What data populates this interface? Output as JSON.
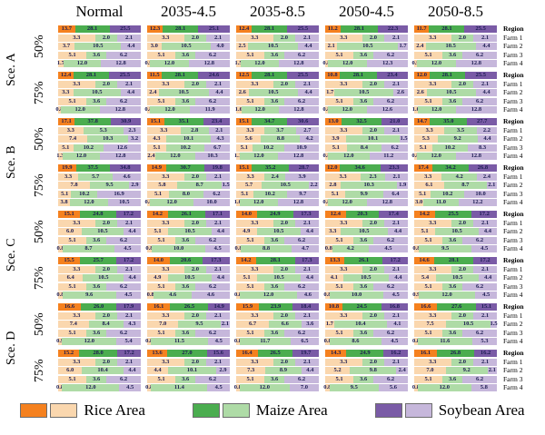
{
  "legend": [
    {
      "label": "Rice Area",
      "dark": "#F5811F",
      "light": "#FAD7AE"
    },
    {
      "label": "Maize Area",
      "dark": "#4BAD4F",
      "light": "#AEDBA6"
    },
    {
      "label": "Soybean Area",
      "dark": "#7A5BA6",
      "light": "#C6B7DB"
    }
  ],
  "chart_data": {
    "type": "bar",
    "variant": "horizontal-stacked-normalized-small-multiples",
    "columns": [
      "Normal",
      "2035-4.5",
      "2035-8.5",
      "2050-4.5",
      "2050-8.5"
    ],
    "series_names": [
      "Rice Area",
      "Maize Area",
      "Soybean Area"
    ],
    "row_labels": [
      "Region",
      "Farm 1",
      "Farm 2",
      "Farm 3",
      "Farm 4"
    ],
    "groups": [
      {
        "scenario": "Sce. A",
        "percent": "50%",
        "values": [
          [
            [
              13.7,
              28.1,
              25.5
            ],
            [
              3.3,
              2.0,
              2.1
            ],
            [
              3.7,
              10.5,
              4.4
            ],
            [
              5.1,
              3.6,
              6.2
            ],
            [
              1.7,
              12.0,
              12.8
            ]
          ],
          [
            [
              12.3,
              28.1,
              25.1
            ],
            [
              3.3,
              2.0,
              2.1
            ],
            [
              3.0,
              10.5,
              4.0
            ],
            [
              5.1,
              3.6,
              6.2
            ],
            [
              0.9,
              12.0,
              12.8
            ]
          ],
          [
            [
              12.4,
              28.1,
              25.5
            ],
            [
              3.3,
              2.0,
              2.1
            ],
            [
              2.5,
              10.5,
              4.4
            ],
            [
              5.1,
              3.6,
              6.2
            ],
            [
              1.5,
              12.0,
              12.8
            ]
          ],
          [
            [
              11.2,
              28.1,
              22.3
            ],
            [
              3.3,
              2.0,
              2.1
            ],
            [
              2.1,
              10.5,
              1.7
            ],
            [
              5.1,
              3.6,
              6.2
            ],
            [
              0.8,
              12.0,
              12.3
            ]
          ],
          [
            [
              11.7,
              28.1,
              25.5
            ],
            [
              3.3,
              2.0,
              2.1
            ],
            [
              2.4,
              10.5,
              4.4
            ],
            [
              5.1,
              3.6,
              6.2
            ],
            [
              0.9,
              12.0,
              12.8
            ]
          ]
        ]
      },
      {
        "scenario": "Sce. A",
        "percent": "75%",
        "values": [
          [
            [
              12.4,
              28.1,
              25.5
            ],
            [
              3.3,
              2.0,
              2.1
            ],
            [
              3.3,
              10.5,
              4.4
            ],
            [
              5.1,
              3.6,
              6.2
            ],
            [
              0.8,
              12.0,
              12.8
            ]
          ],
          [
            [
              11.5,
              28.1,
              24.6
            ],
            [
              3.3,
              2.0,
              2.1
            ],
            [
              2.4,
              10.5,
              4.4
            ],
            [
              5.1,
              3.6,
              6.2
            ],
            [
              0.8,
              12.0,
              11.9
            ]
          ],
          [
            [
              12.5,
              28.1,
              25.5
            ],
            [
              3.3,
              2.0,
              2.1
            ],
            [
              2.6,
              10.5,
              4.4
            ],
            [
              5.1,
              3.6,
              6.2
            ],
            [
              1.6,
              12.0,
              12.8
            ]
          ],
          [
            [
              10.8,
              28.1,
              23.4
            ],
            [
              3.3,
              2.0,
              2.1
            ],
            [
              1.7,
              10.5,
              2.6
            ],
            [
              5.1,
              3.6,
              6.2
            ],
            [
              0.8,
              12.0,
              12.6
            ]
          ],
          [
            [
              12.0,
              28.1,
              25.5
            ],
            [
              3.3,
              2.0,
              2.1
            ],
            [
              2.6,
              10.5,
              4.4
            ],
            [
              5.1,
              3.6,
              6.2
            ],
            [
              1.0,
              12.0,
              12.8
            ]
          ]
        ]
      },
      {
        "scenario": "Sce. B",
        "percent": "50%",
        "values": [
          [
            [
              17.1,
              37.8,
              30.9
            ],
            [
              3.3,
              5.3,
              2.3
            ],
            [
              7.4,
              10.3,
              3.2
            ],
            [
              5.1,
              10.2,
              12.6
            ],
            [
              1.3,
              12.0,
              12.8
            ]
          ],
          [
            [
              15.1,
              35.1,
              23.4
            ],
            [
              3.3,
              2.8,
              2.1
            ],
            [
              4.3,
              10.1,
              4.3
            ],
            [
              5.1,
              10.2,
              6.7
            ],
            [
              2.4,
              12.0,
              10.3
            ]
          ],
          [
            [
              15.1,
              34.7,
              30.6
            ],
            [
              3.3,
              3.7,
              2.7
            ],
            [
              5.6,
              8.8,
              4.2
            ],
            [
              5.1,
              10.2,
              10.9
            ],
            [
              1.1,
              12.0,
              12.8
            ]
          ],
          [
            [
              13.0,
              32.5,
              21.0
            ],
            [
              3.3,
              2.0,
              2.1
            ],
            [
              3.9,
              10.1,
              1.5
            ],
            [
              5.1,
              8.4,
              6.2
            ],
            [
              0.8,
              12.0,
              11.2
            ]
          ],
          [
            [
              14.7,
              35.0,
              27.7
            ],
            [
              3.3,
              3.5,
              2.2
            ],
            [
              5.3,
              9.2,
              4.4
            ],
            [
              5.1,
              10.2,
              8.3
            ],
            [
              0.8,
              12.0,
              12.8
            ]
          ]
        ]
      },
      {
        "scenario": "Sce. B",
        "percent": "75%",
        "values": [
          [
            [
              19.9,
              37.5,
              34.8
            ],
            [
              3.3,
              5.7,
              4.6
            ],
            [
              7.8,
              9.5,
              2.9
            ],
            [
              5.1,
              10.2,
              16.9
            ],
            [
              3.8,
              12.0,
              10.5
            ]
          ],
          [
            [
              14.9,
              30.7,
              19.8
            ],
            [
              3.3,
              2.0,
              2.1
            ],
            [
              5.8,
              8.7,
              1.5
            ],
            [
              5.1,
              8.0,
              6.2
            ],
            [
              0.8,
              12.0,
              10.0
            ]
          ],
          [
            [
              15.1,
              35.2,
              28.7
            ],
            [
              3.3,
              2.4,
              3.9
            ],
            [
              5.7,
              10.5,
              2.2
            ],
            [
              5.1,
              10.2,
              9.7
            ],
            [
              1.0,
              12.0,
              12.8
            ]
          ],
          [
            [
              12.0,
              34.6,
              23.3
            ],
            [
              3.3,
              2.3,
              2.1
            ],
            [
              2.8,
              10.3,
              1.9
            ],
            [
              5.1,
              9.9,
              6.4
            ],
            [
              0.8,
              12.0,
              12.8
            ]
          ],
          [
            [
              17.4,
              34.2,
              26.8
            ],
            [
              3.3,
              4.2,
              2.4
            ],
            [
              6.1,
              8.7,
              2.1
            ],
            [
              5.1,
              10.2,
              10.0
            ],
            [
              3.0,
              11.0,
              12.2
            ]
          ]
        ]
      },
      {
        "scenario": "Sce. C",
        "percent": "50%",
        "values": [
          [
            [
              15.1,
              24.8,
              17.2
            ],
            [
              3.3,
              2.0,
              2.1
            ],
            [
              6.0,
              10.5,
              4.4
            ],
            [
              5.1,
              3.6,
              6.2
            ],
            [
              0.8,
              8.7,
              4.5
            ]
          ],
          [
            [
              14.2,
              26.1,
              17.1
            ],
            [
              3.3,
              2.0,
              2.1
            ],
            [
              5.1,
              10.5,
              4.4
            ],
            [
              5.1,
              3.6,
              6.2
            ],
            [
              0.8,
              10.0,
              4.5
            ]
          ],
          [
            [
              14.0,
              24.9,
              17.3
            ],
            [
              3.3,
              2.0,
              2.1
            ],
            [
              4.9,
              10.5,
              4.4
            ],
            [
              5.1,
              3.6,
              6.2
            ],
            [
              0.8,
              8.8,
              4.7
            ]
          ],
          [
            [
              12.4,
              20.3,
              17.4
            ],
            [
              3.3,
              2.0,
              2.1
            ],
            [
              3.3,
              10.5,
              4.4
            ],
            [
              5.1,
              3.6,
              6.2
            ],
            [
              0.8,
              4.2,
              4.5
            ]
          ],
          [
            [
              14.2,
              25.5,
              17.2
            ],
            [
              3.3,
              2.0,
              2.1
            ],
            [
              5.1,
              10.5,
              4.4
            ],
            [
              5.1,
              3.6,
              6.2
            ],
            [
              0.8,
              9.5,
              4.5
            ]
          ]
        ]
      },
      {
        "scenario": "Sce. C",
        "percent": "75%",
        "values": [
          [
            [
              15.5,
              25.7,
              17.2
            ],
            [
              3.3,
              2.0,
              2.1
            ],
            [
              6.4,
              10.5,
              4.4
            ],
            [
              5.1,
              3.6,
              6.2
            ],
            [
              0.8,
              9.6,
              4.5
            ]
          ],
          [
            [
              14.0,
              20.6,
              17.3
            ],
            [
              3.3,
              2.0,
              2.1
            ],
            [
              4.9,
              10.5,
              4.4
            ],
            [
              5.1,
              3.6,
              6.2
            ],
            [
              0.8,
              4.6,
              4.6
            ]
          ],
          [
            [
              14.2,
              28.1,
              17.3
            ],
            [
              3.3,
              2.0,
              2.1
            ],
            [
              5.1,
              10.5,
              4.4
            ],
            [
              5.1,
              3.6,
              6.2
            ],
            [
              0.8,
              12.0,
              4.6
            ]
          ],
          [
            [
              13.3,
              26.1,
              17.2
            ],
            [
              3.3,
              2.0,
              2.1
            ],
            [
              4.1,
              10.5,
              4.4
            ],
            [
              5.1,
              3.6,
              6.2
            ],
            [
              0.8,
              10.0,
              4.5
            ]
          ],
          [
            [
              14.6,
              28.1,
              17.2
            ],
            [
              3.3,
              2.0,
              2.1
            ],
            [
              5.4,
              10.5,
              4.4
            ],
            [
              5.1,
              3.6,
              6.2
            ],
            [
              0.9,
              12.0,
              4.5
            ]
          ]
        ]
      },
      {
        "scenario": "Sce. D",
        "percent": "50%",
        "values": [
          [
            [
              16.6,
              26.0,
              17.9
            ],
            [
              3.3,
              2.0,
              2.1
            ],
            [
              7.4,
              8.4,
              4.3
            ],
            [
              5.1,
              3.6,
              6.2
            ],
            [
              0.9,
              12.0,
              5.4
            ]
          ],
          [
            [
              16.1,
              26.5,
              14.9
            ],
            [
              3.3,
              2.0,
              2.1
            ],
            [
              7.0,
              9.5,
              2.1
            ],
            [
              5.1,
              3.6,
              6.2
            ],
            [
              0.8,
              11.5,
              4.5
            ]
          ],
          [
            [
              15.9,
              23.9,
              18.4
            ],
            [
              3.3,
              2.0,
              2.1
            ],
            [
              6.7,
              6.6,
              3.6
            ],
            [
              5.1,
              3.6,
              6.2
            ],
            [
              0.8,
              11.7,
              6.5
            ]
          ],
          [
            [
              10.8,
              24.5,
              16.8
            ],
            [
              3.3,
              2.0,
              2.1
            ],
            [
              1.7,
              10.4,
              4.1
            ],
            [
              5.1,
              3.6,
              6.2
            ],
            [
              0.8,
              8.6,
              4.5
            ]
          ],
          [
            [
              16.6,
              27.6,
              15.1
            ],
            [
              3.3,
              2.0,
              2.1
            ],
            [
              7.5,
              10.5,
              1.5
            ],
            [
              5.1,
              3.6,
              6.2
            ],
            [
              0.8,
              11.6,
              5.3
            ]
          ]
        ]
      },
      {
        "scenario": "Sce. D",
        "percent": "75%",
        "values": [
          [
            [
              15.2,
              28.0,
              17.2
            ],
            [
              3.3,
              2.0,
              2.1
            ],
            [
              6.0,
              10.4,
              4.4
            ],
            [
              5.1,
              3.6,
              6.2
            ],
            [
              0.8,
              12.0,
              4.5
            ]
          ],
          [
            [
              13.6,
              27.0,
              15.6
            ],
            [
              3.3,
              2.0,
              2.1
            ],
            [
              4.4,
              10.1,
              2.9
            ],
            [
              5.1,
              3.6,
              6.2
            ],
            [
              0.8,
              11.4,
              4.5
            ]
          ],
          [
            [
              16.4,
              26.5,
              19.7
            ],
            [
              3.3,
              2.0,
              2.1
            ],
            [
              7.3,
              8.9,
              4.4
            ],
            [
              5.1,
              3.6,
              6.2
            ],
            [
              0.8,
              12.0,
              7.0
            ]
          ],
          [
            [
              14.3,
              24.9,
              16.2
            ],
            [
              3.3,
              2.0,
              2.1
            ],
            [
              5.2,
              9.8,
              2.4
            ],
            [
              5.1,
              3.6,
              6.2
            ],
            [
              0.8,
              9.5,
              5.6
            ]
          ],
          [
            [
              16.1,
              26.8,
              16.2
            ],
            [
              3.3,
              2.0,
              2.1
            ],
            [
              7.0,
              9.2,
              2.1
            ],
            [
              5.1,
              3.6,
              6.2
            ],
            [
              0.8,
              12.0,
              5.8
            ]
          ]
        ]
      }
    ]
  }
}
